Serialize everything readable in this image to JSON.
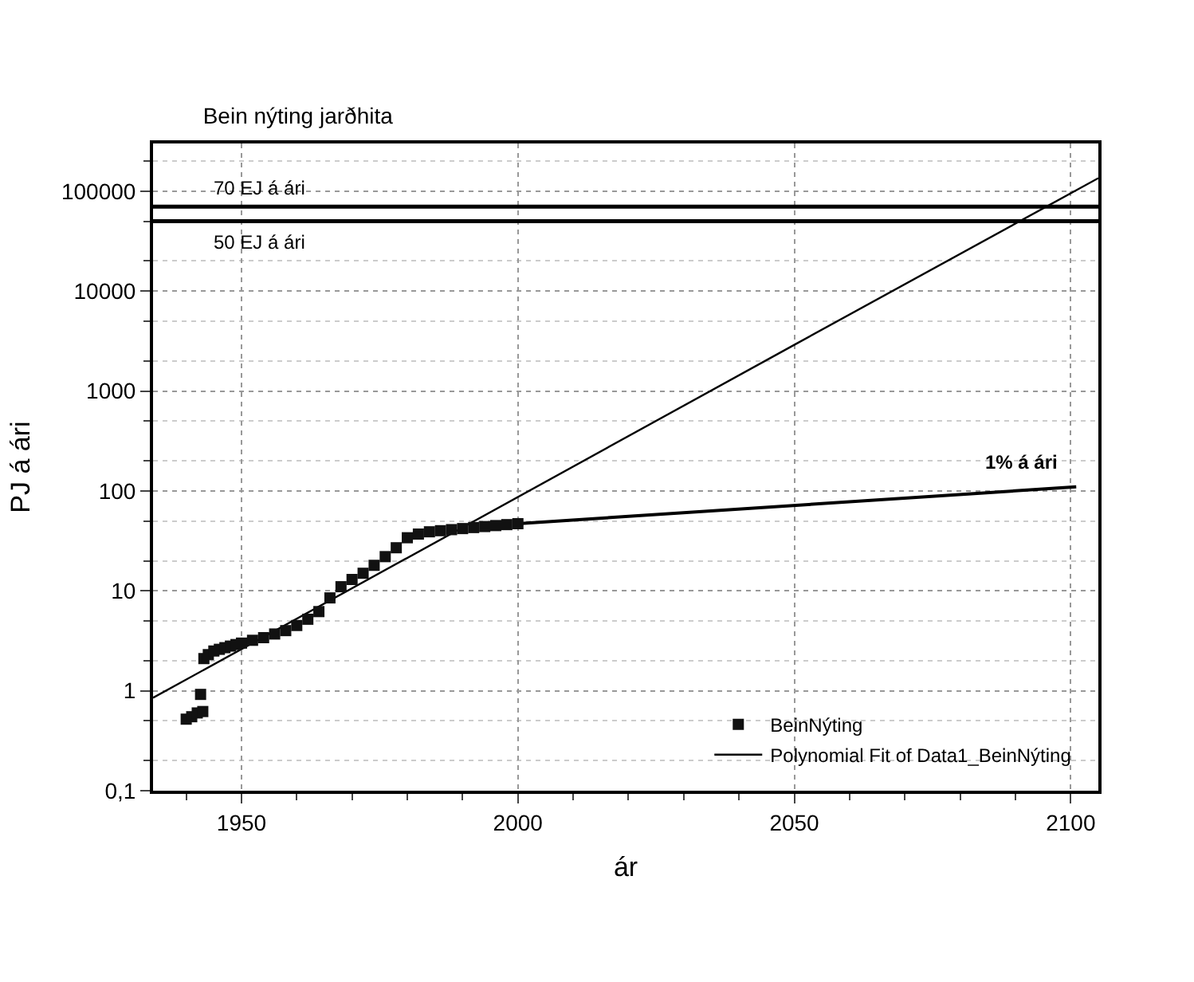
{
  "chart_data": {
    "type": "scatter",
    "title": "Bein nýting jarðhita",
    "xlabel": "ár",
    "ylabel": "PJ á ári",
    "log": "y",
    "grid": true,
    "legend": "bottom right",
    "xlim": [
      1934,
      2105
    ],
    "xticks": [
      1950,
      2000,
      2050,
      2100
    ],
    "ylim": [
      0.1,
      300000
    ],
    "yticks": [
      {
        "value": 0.1,
        "label": "0,1"
      },
      1,
      10,
      100,
      1000,
      10000,
      100000
    ],
    "ref_lines": [
      {
        "axis": "y",
        "value": 70000,
        "label": "70 EJ á ári",
        "color": "#000000"
      },
      {
        "axis": "y",
        "value": 50000,
        "label": "50 EJ á ári",
        "color": "#000000"
      }
    ],
    "annotations": [
      "1% á ári"
    ],
    "series": [
      {
        "name": "BeinNýting",
        "marker": "square",
        "color": "#111111",
        "x": [
          1940,
          1941,
          1942,
          1943,
          1942.6,
          1943.2,
          1944,
          1945,
          1946,
          1947,
          1948,
          1949,
          1950,
          1952,
          1954,
          1956,
          1958,
          1960,
          1962,
          1964,
          1966,
          1968,
          1970,
          1972,
          1974,
          1976,
          1978,
          1980,
          1982,
          1984,
          1986,
          1988,
          1990,
          1992,
          1994,
          1996,
          1998,
          2000
        ],
        "values": [
          0.52,
          0.55,
          0.6,
          0.62,
          0.92,
          2.1,
          2.3,
          2.5,
          2.6,
          2.7,
          2.8,
          2.9,
          3.0,
          3.2,
          3.4,
          3.7,
          4.0,
          4.5,
          5.2,
          6.2,
          8.5,
          11,
          13,
          15,
          18,
          22,
          27,
          34,
          37,
          39,
          40,
          41,
          42,
          43,
          44,
          45,
          46,
          47
        ]
      },
      {
        "name": "Polynomial Fit of Data1_BeinNýting",
        "type": "line",
        "color": "#000000",
        "x": [
          1934,
          2050,
          2105
        ],
        "values": [
          0.85,
          2900,
          135000
        ]
      },
      {
        "type": "line",
        "color": "#000000",
        "x": [
          2000,
          2101
        ],
        "values": [
          47,
          110
        ]
      }
    ]
  }
}
